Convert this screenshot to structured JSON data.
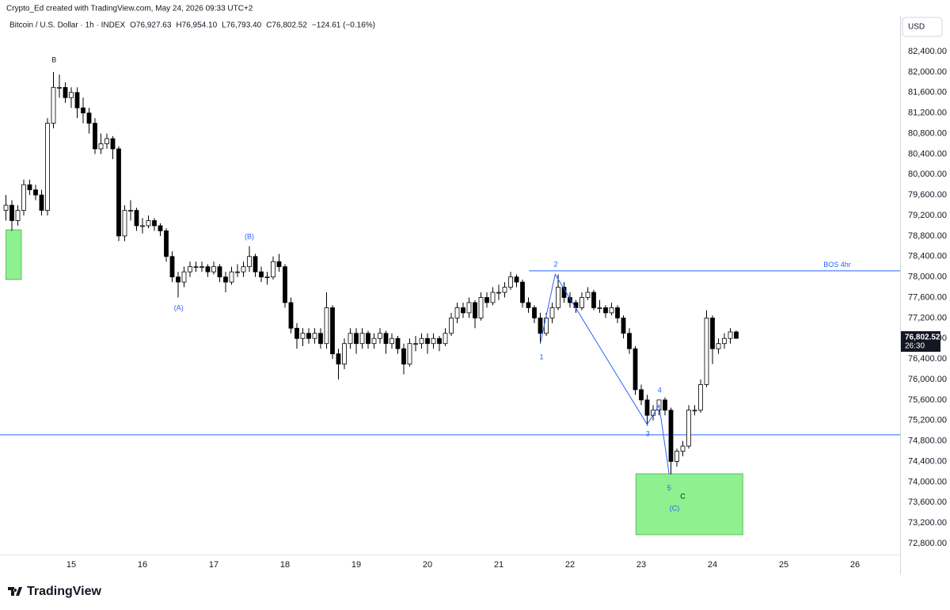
{
  "credit": "Crypto_Ed created with TradingView.com, May 24, 2026 09:33 UTC+2",
  "watermark": "TradingView",
  "chart_data": {
    "type": "candlestick",
    "title": "Bitcoin / U.S. Dollar · 1h · INDEX",
    "ohlc_text": [
      "O76,927.63",
      "H76,954.10",
      "L76,793.40",
      "C76,802.52",
      "−124.61 (−0.16%)"
    ],
    "currency": "USD",
    "last_price_label": "76,802.52",
    "countdown": "26:30",
    "up_color": "#ffffff",
    "down_color": "#000000",
    "wick_color": "#000000",
    "grid": false,
    "candles": [
      [
        79300,
        79600,
        79100,
        79400
      ],
      [
        79400,
        79500,
        78900,
        79100
      ],
      [
        79100,
        79400,
        79000,
        79300
      ],
      [
        79300,
        79900,
        79200,
        79800
      ],
      [
        79800,
        79900,
        79600,
        79700
      ],
      [
        79700,
        79800,
        79500,
        79600
      ],
      [
        79600,
        79700,
        79200,
        79300
      ],
      [
        79300,
        81100,
        79200,
        81000
      ],
      [
        81000,
        82000,
        80900,
        81700
      ],
      [
        81700,
        81950,
        81500,
        81700
      ],
      [
        81700,
        81800,
        81400,
        81500
      ],
      [
        81500,
        81700,
        81300,
        81600
      ],
      [
        81600,
        81700,
        81100,
        81300
      ],
      [
        81300,
        81500,
        81000,
        81200
      ],
      [
        81200,
        81300,
        80800,
        81000
      ],
      [
        81000,
        81100,
        80400,
        80500
      ],
      [
        80500,
        80800,
        80400,
        80600
      ],
      [
        80600,
        80800,
        80500,
        80700
      ],
      [
        80700,
        80750,
        80300,
        80500
      ],
      [
        80500,
        80550,
        78700,
        78800
      ],
      [
        78800,
        79400,
        78700,
        79300
      ],
      [
        79300,
        79500,
        79100,
        79300
      ],
      [
        79300,
        79350,
        78900,
        79000
      ],
      [
        79000,
        79150,
        78850,
        79000
      ],
      [
        79000,
        79200,
        78950,
        79100
      ],
      [
        79100,
        79150,
        78900,
        79000
      ],
      [
        79000,
        79050,
        78800,
        78900
      ],
      [
        78900,
        78950,
        78300,
        78400
      ],
      [
        78400,
        78500,
        77900,
        78000
      ],
      [
        78000,
        78100,
        77600,
        77900
      ],
      [
        77900,
        78200,
        77800,
        78100
      ],
      [
        78100,
        78300,
        78000,
        78200
      ],
      [
        78200,
        78300,
        78100,
        78200
      ],
      [
        78200,
        78300,
        78100,
        78200
      ],
      [
        78200,
        78250,
        78000,
        78100
      ],
      [
        78100,
        78300,
        78050,
        78200
      ],
      [
        78200,
        78250,
        77900,
        78000
      ],
      [
        78000,
        78100,
        77700,
        77900
      ],
      [
        77900,
        78200,
        77850,
        78100
      ],
      [
        78100,
        78250,
        78000,
        78100
      ],
      [
        78100,
        78300,
        78000,
        78200
      ],
      [
        78200,
        78600,
        78100,
        78400
      ],
      [
        78400,
        78450,
        78000,
        78100
      ],
      [
        78100,
        78200,
        77900,
        78000
      ],
      [
        78000,
        78100,
        77850,
        78000
      ],
      [
        78000,
        78400,
        77950,
        78300
      ],
      [
        78300,
        78450,
        78100,
        78200
      ],
      [
        78200,
        78250,
        77400,
        77500
      ],
      [
        77500,
        77600,
        76900,
        77000
      ],
      [
        77000,
        77100,
        76600,
        76800
      ],
      [
        76800,
        77000,
        76650,
        76900
      ],
      [
        76900,
        77000,
        76700,
        76800
      ],
      [
        76800,
        77000,
        76700,
        76900
      ],
      [
        76900,
        77000,
        76600,
        76700
      ],
      [
        76700,
        77700,
        76600,
        77400
      ],
      [
        77400,
        77450,
        76400,
        76500
      ],
      [
        76500,
        76600,
        76000,
        76300
      ],
      [
        76300,
        76800,
        76200,
        76700
      ],
      [
        76700,
        77000,
        76600,
        76900
      ],
      [
        76900,
        77000,
        76500,
        76700
      ],
      [
        76700,
        77000,
        76600,
        76900
      ],
      [
        76900,
        76950,
        76600,
        76700
      ],
      [
        76700,
        76900,
        76600,
        76800
      ],
      [
        76800,
        77000,
        76700,
        76900
      ],
      [
        76900,
        76950,
        76500,
        76700
      ],
      [
        76700,
        76900,
        76600,
        76800
      ],
      [
        76800,
        76850,
        76500,
        76600
      ],
      [
        76600,
        76700,
        76100,
        76300
      ],
      [
        76300,
        76800,
        76250,
        76700
      ],
      [
        76700,
        76850,
        76550,
        76700
      ],
      [
        76700,
        76900,
        76600,
        76800
      ],
      [
        76800,
        76900,
        76500,
        76700
      ],
      [
        76700,
        76900,
        76600,
        76800
      ],
      [
        76800,
        76850,
        76550,
        76700
      ],
      [
        76700,
        77000,
        76650,
        76900
      ],
      [
        76900,
        77300,
        76850,
        77200
      ],
      [
        77200,
        77500,
        77100,
        77400
      ],
      [
        77400,
        77500,
        77200,
        77300
      ],
      [
        77300,
        77600,
        77200,
        77500
      ],
      [
        77500,
        77550,
        77000,
        77200
      ],
      [
        77200,
        77700,
        77150,
        77600
      ],
      [
        77600,
        77700,
        77400,
        77500
      ],
      [
        77500,
        77800,
        77450,
        77700
      ],
      [
        77700,
        77850,
        77550,
        77700
      ],
      [
        77700,
        77900,
        77600,
        77800
      ],
      [
        77800,
        78100,
        77750,
        78000
      ],
      [
        78000,
        78050,
        77800,
        77900
      ],
      [
        77900,
        77950,
        77400,
        77500
      ],
      [
        77500,
        77600,
        77300,
        77400
      ],
      [
        77400,
        77450,
        77100,
        77200
      ],
      [
        77200,
        77300,
        76700,
        76900
      ],
      [
        76900,
        77300,
        76850,
        77200
      ],
      [
        77200,
        77500,
        77100,
        77400
      ],
      [
        77400,
        78050,
        77350,
        77800
      ],
      [
        77800,
        77900,
        77500,
        77600
      ],
      [
        77600,
        77700,
        77400,
        77500
      ],
      [
        77500,
        77550,
        77300,
        77400
      ],
      [
        77400,
        77700,
        77350,
        77600
      ],
      [
        77600,
        77800,
        77550,
        77700
      ],
      [
        77700,
        77750,
        77350,
        77400
      ],
      [
        77400,
        77550,
        77300,
        77400
      ],
      [
        77400,
        77450,
        77200,
        77300
      ],
      [
        77300,
        77500,
        77250,
        77400
      ],
      [
        77400,
        77450,
        77100,
        77200
      ],
      [
        77200,
        77250,
        76800,
        76900
      ],
      [
        76900,
        77000,
        76500,
        76600
      ],
      [
        76600,
        76650,
        75700,
        75800
      ],
      [
        75800,
        75900,
        75500,
        75600
      ],
      [
        75600,
        75700,
        75100,
        75300
      ],
      [
        75300,
        75500,
        75200,
        75400
      ],
      [
        75400,
        75600,
        75300,
        75600
      ],
      [
        75600,
        75650,
        75300,
        75400
      ],
      [
        75400,
        75450,
        74150,
        74400
      ],
      [
        74400,
        74650,
        74300,
        74600
      ],
      [
        74600,
        74800,
        74500,
        74700
      ],
      [
        74700,
        75500,
        74650,
        75400
      ],
      [
        75400,
        75500,
        75300,
        75400
      ],
      [
        75400,
        76000,
        75350,
        75900
      ],
      [
        75900,
        77350,
        75850,
        77200
      ],
      [
        77200,
        77250,
        76300,
        76600
      ],
      [
        76600,
        76800,
        76500,
        76700
      ],
      [
        76700,
        76900,
        76600,
        76800
      ],
      [
        76800,
        77000,
        76700,
        76927.63
      ],
      [
        76927.63,
        76954.1,
        76793.4,
        76802.52
      ]
    ],
    "xlim": [
      -1,
      150.6
    ],
    "xticks": [
      {
        "value": 11,
        "label": "15"
      },
      {
        "value": 23,
        "label": "16"
      },
      {
        "value": 35,
        "label": "17"
      },
      {
        "value": 47,
        "label": "18"
      },
      {
        "value": 59,
        "label": "19"
      },
      {
        "value": 71,
        "label": "20"
      },
      {
        "value": 83,
        "label": "21"
      },
      {
        "value": 95,
        "label": "22"
      },
      {
        "value": 107,
        "label": "23"
      },
      {
        "value": 119,
        "label": "24"
      },
      {
        "value": 131,
        "label": "25"
      },
      {
        "value": 143,
        "label": "26"
      }
    ],
    "ylim": [
      72583,
      83096
    ],
    "yticks": [
      {
        "value": 72800,
        "label": "72,800.00"
      },
      {
        "value": 73200,
        "label": "73,200.00"
      },
      {
        "value": 73600,
        "label": "73,600.00"
      },
      {
        "value": 74000,
        "label": "74,000.00"
      },
      {
        "value": 74400,
        "label": "74,400.00"
      },
      {
        "value": 74800,
        "label": "74,800.00"
      },
      {
        "value": 75200,
        "label": "75,200.00"
      },
      {
        "value": 75600,
        "label": "75,600.00"
      },
      {
        "value": 76000,
        "label": "76,000.00"
      },
      {
        "value": 76400,
        "label": "76,400.00"
      },
      {
        "value": 76800,
        "label": "76,800.00"
      },
      {
        "value": 77200,
        "label": "77,200.00"
      },
      {
        "value": 77600,
        "label": "77,600.00"
      },
      {
        "value": 78000,
        "label": "78,000.00"
      },
      {
        "value": 78400,
        "label": "78,400.00"
      },
      {
        "value": 78800,
        "label": "78,800.00"
      },
      {
        "value": 79200,
        "label": "79,200.00"
      },
      {
        "value": 79600,
        "label": "79,600.00"
      },
      {
        "value": 80000,
        "label": "80,000.00"
      },
      {
        "value": 80400,
        "label": "80,400.00"
      },
      {
        "value": 80800,
        "label": "80,800.00"
      },
      {
        "value": 81200,
        "label": "81,200.00"
      },
      {
        "value": 81600,
        "label": "81,600.00"
      },
      {
        "value": 82000,
        "label": "82,000.00"
      },
      {
        "value": 82400,
        "label": "82,400.00"
      }
    ],
    "boxes": [
      {
        "x": [
          0,
          2.6
        ],
        "y": [
          77950,
          78920
        ],
        "color": "#8ef08e"
      },
      {
        "x": [
          106.1,
          124.1
        ],
        "y": [
          72970,
          74160
        ],
        "color": "#8ef08e"
      }
    ],
    "hlines": [
      {
        "y": 74920,
        "x": [
          -1,
          150.6
        ],
        "color": "#2962ff"
      },
      {
        "y": 78120,
        "x": [
          88.1,
          150.6
        ],
        "color": "#2962ff"
      }
    ],
    "wave": {
      "x": [
        90,
        92.5,
        108,
        110,
        111.7
      ],
      "y": [
        76700,
        78050,
        75120,
        75500,
        74150
      ],
      "color": "#2962ff"
    },
    "annotations": [
      {
        "text": "B",
        "x": 8.1,
        "y": 82230,
        "color": "#131722"
      },
      {
        "text": "(A)",
        "x": 29.1,
        "y": 77390,
        "color": "#2962ff"
      },
      {
        "text": "(B)",
        "x": 41,
        "y": 78780,
        "color": "#2962ff"
      },
      {
        "text": "1",
        "x": 90.2,
        "y": 76430,
        "color": "#2962ff"
      },
      {
        "text": "2",
        "x": 92.6,
        "y": 78240,
        "color": "#2962ff"
      },
      {
        "text": "3",
        "x": 108.1,
        "y": 74930,
        "color": "#2962ff"
      },
      {
        "text": "4",
        "x": 110.1,
        "y": 75780,
        "color": "#2962ff"
      },
      {
        "text": "5",
        "x": 111.7,
        "y": 73870,
        "color": "#2962ff"
      },
      {
        "text": "C",
        "x": 114,
        "y": 73710,
        "color": "#131722"
      },
      {
        "text": "(C)",
        "x": 112.6,
        "y": 73480,
        "color": "#2962ff"
      },
      {
        "text": "BOS 4hr",
        "x": 140,
        "y": 78230,
        "color": "#2962ff"
      }
    ]
  }
}
